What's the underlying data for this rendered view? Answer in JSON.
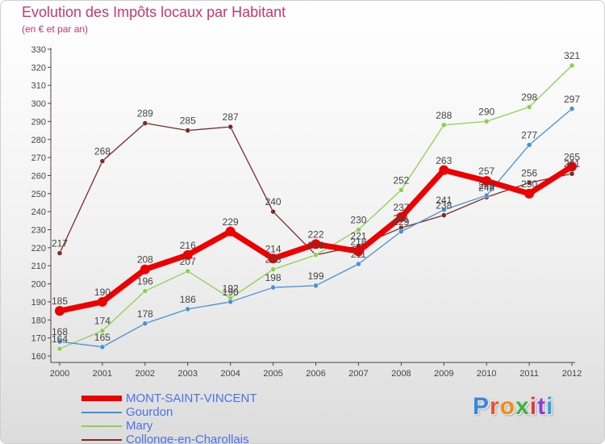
{
  "title": "Evolution des Impôts locaux par Habitant",
  "subtitle": "(en € et par an)",
  "brand": {
    "name": "Proxiti",
    "letter_colors": [
      "#3a86d9",
      "#e2532f",
      "#ec8c1e",
      "#45b042",
      "#e03b3b",
      "#8a3fd1",
      "#2fa3d9"
    ]
  },
  "chart_data": {
    "type": "line",
    "x": [
      "2000",
      "2001",
      "2002",
      "2003",
      "2004",
      "2005",
      "2006",
      "2007",
      "2008",
      "2009",
      "2010",
      "2011",
      "2012"
    ],
    "ylim": [
      160,
      330
    ],
    "yticks": [
      160,
      170,
      180,
      190,
      200,
      210,
      220,
      230,
      240,
      250,
      260,
      270,
      280,
      290,
      300,
      310,
      320,
      330
    ],
    "grid": false,
    "legend_position": "bottom-left",
    "series": [
      {
        "name": "Collonge-en-Charollais",
        "color": "#7a2a2a",
        "values": [
          217,
          268,
          289,
          285,
          287,
          240,
          216,
          221,
          231,
          238,
          248,
          256,
          261
        ],
        "labels": [
          "217",
          "268",
          "289",
          "285",
          "287",
          "240",
          "216",
          "221",
          "231",
          "238",
          "248",
          "256",
          "261"
        ]
      },
      {
        "name": "Mary",
        "color": "#8bd14e",
        "values": [
          164,
          174,
          196,
          207,
          192,
          208,
          216,
          230,
          252,
          288,
          290,
          298,
          321
        ],
        "labels": [
          "164",
          "174",
          "196",
          "207",
          "192",
          "208",
          "216",
          "230",
          "252",
          "288",
          "290",
          "298",
          "321"
        ]
      },
      {
        "name": "Gourdon",
        "color": "#4a8fd1",
        "values": [
          168,
          165,
          178,
          186,
          190,
          198,
          199,
          211,
          229,
          241,
          249,
          277,
          297
        ],
        "labels": [
          "168",
          "165",
          "178",
          "186",
          "190",
          "198",
          "199",
          "211",
          "229",
          "241",
          "249",
          "277",
          "297"
        ]
      },
      {
        "name": "MONT-SAINT-VINCENT",
        "color": "#ee0000",
        "values": [
          185,
          190,
          208,
          216,
          229,
          214,
          222,
          218,
          237,
          263,
          257,
          250,
          265
        ],
        "labels": [
          "185",
          "190",
          "208",
          "216",
          "229",
          "214",
          "222",
          "218",
          "237",
          "263",
          "257",
          "250",
          "265"
        ]
      }
    ]
  },
  "legend": [
    {
      "label": "MONT-SAINT-VINCENT",
      "color": "#ee0000"
    },
    {
      "label": "Gourdon",
      "color": "#4a8fd1"
    },
    {
      "label": "Mary",
      "color": "#8bd14e"
    },
    {
      "label": "Collonge-en-Charollais",
      "color": "#7a2a2a"
    }
  ]
}
